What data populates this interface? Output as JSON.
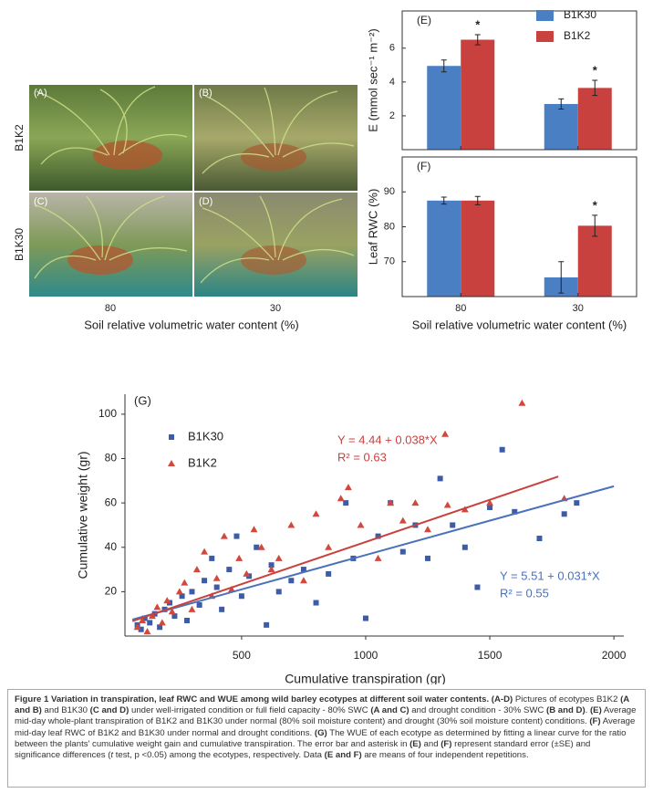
{
  "photos": {
    "panels": [
      {
        "label": "(A)"
      },
      {
        "label": "(B)"
      },
      {
        "label": "(C)"
      },
      {
        "label": "(D)"
      }
    ],
    "row_labels": [
      "B1K2",
      "B1K30"
    ],
    "column_labels": [
      "80",
      "30"
    ],
    "x_label": "Soil relative volumetric water content (%)"
  },
  "chart_data": [
    {
      "type": "bar",
      "panel_label": "(E)",
      "y_label": "E (mmol sec⁻¹ m⁻²)",
      "categories": [
        null,
        null
      ],
      "ylim": [
        0,
        8.2
      ],
      "yticks": [
        2,
        4,
        6
      ],
      "legend": "upper right",
      "series": [
        {
          "name": "B1K30",
          "color": "#4a7fc4",
          "values": [
            4.95,
            2.7
          ],
          "errors": [
            0.35,
            0.3
          ]
        },
        {
          "name": "B1K2",
          "color": "#c9413f",
          "values": [
            6.5,
            3.65
          ],
          "errors": [
            0.3,
            0.45
          ]
        }
      ],
      "annotations": [
        {
          "text": "*",
          "series": 1,
          "index": 0
        },
        {
          "text": "*",
          "series": 1,
          "index": 1
        }
      ]
    },
    {
      "type": "bar",
      "panel_label": "(F)",
      "y_label": "Leaf RWC (%)",
      "x_label": "Soil relative volumetric water content (%)",
      "categories": [
        "80",
        "30"
      ],
      "ylim": [
        60,
        100
      ],
      "yticks": [
        70,
        80,
        90
      ],
      "series": [
        {
          "color": "#4a7fc4",
          "values": [
            87.5,
            65.5
          ],
          "errors": [
            1,
            4.5
          ]
        },
        {
          "color": "#c9413f",
          "values": [
            87.5,
            80.3
          ],
          "errors": [
            1.2,
            3
          ]
        }
      ],
      "annotations": [
        {
          "text": "*",
          "series": 1,
          "index": 1
        }
      ]
    },
    {
      "type": "scatter",
      "panel_label": "(G)",
      "x_label": "Cumulative transpiration (gr)",
      "y_label": "Cumulative weight (gr)",
      "xlim": [
        30,
        2040
      ],
      "ylim": [
        0,
        109
      ],
      "xticks": [
        500,
        1000,
        1500,
        2000
      ],
      "yticks": [
        20,
        40,
        60,
        80,
        100
      ],
      "legend": "upper left",
      "series": [
        {
          "name": "B1K30",
          "color": "#3d5ca8",
          "marker": "square",
          "line_color": "#4a72ba",
          "x": [
            80,
            95,
            110,
            130,
            150,
            170,
            190,
            210,
            230,
            260,
            280,
            300,
            330,
            350,
            380,
            400,
            420,
            450,
            480,
            500,
            530,
            560,
            600,
            620,
            650,
            700,
            750,
            800,
            850,
            920,
            950,
            1000,
            1050,
            1100,
            1150,
            1200,
            1250,
            1300,
            1350,
            1400,
            1450,
            1500,
            1550,
            1600,
            1700,
            1800,
            1850
          ],
          "values": [
            5,
            3,
            8,
            6,
            10,
            4,
            12,
            15,
            9,
            18,
            7,
            20,
            14,
            25,
            35,
            22,
            12,
            30,
            45,
            18,
            27,
            40,
            5,
            32,
            20,
            25,
            30,
            15,
            28,
            60,
            35,
            8,
            45,
            60,
            38,
            50,
            35,
            71,
            50,
            40,
            22,
            58,
            84,
            56,
            44,
            55,
            60
          ],
          "fit": {
            "x": [
              60,
              2000
            ],
            "y": [
              7.4,
              67.5
            ]
          },
          "equation": [
            "Y = 5.51 + 0.031*X",
            "R² = 0.55"
          ]
        },
        {
          "name": "B1K2",
          "color": "#d2483c",
          "marker": "triangle",
          "line_color": "#c9413f",
          "x": [
            80,
            100,
            120,
            140,
            160,
            180,
            200,
            220,
            250,
            270,
            300,
            320,
            350,
            380,
            400,
            430,
            460,
            490,
            520,
            550,
            580,
            620,
            650,
            700,
            750,
            800,
            850,
            900,
            930,
            980,
            1050,
            1100,
            1150,
            1200,
            1250,
            1320,
            1330,
            1400,
            1500,
            1630,
            1800
          ],
          "values": [
            4,
            7,
            2,
            9,
            13,
            6,
            16,
            11,
            20,
            24,
            12,
            30,
            38,
            18,
            26,
            45,
            21,
            35,
            28,
            48,
            40,
            30,
            35,
            50,
            25,
            55,
            40,
            62,
            67,
            50,
            35,
            60,
            52,
            60,
            48,
            91,
            59,
            57,
            60,
            105,
            62
          ],
          "fit": {
            "x": [
              60,
              1776
            ],
            "y": [
              6.7,
              71.9
            ]
          },
          "equation": [
            "Y = 4.44 + 0.038*X",
            "R² = 0.63"
          ]
        }
      ]
    }
  ],
  "caption": [
    {
      "text": "Figure 1 Variation in transpiration, leaf RWC and WUE among wild barley ecotypes at different soil water contents. (A-D)",
      "style": "bold"
    },
    {
      "text": " Pictures of ecotypes B1K2 ",
      "style": "normal"
    },
    {
      "text": "(A and B)",
      "style": "bold"
    },
    {
      "text": " and B1K30 ",
      "style": "normal"
    },
    {
      "text": "(C and D)",
      "style": "bold"
    },
    {
      "text": " under well-irrigated condition or full field capacity - 80% SWC ",
      "style": "normal"
    },
    {
      "text": "(A and C)",
      "style": "bold"
    },
    {
      "text": " and drought condition - 30% SWC ",
      "style": "normal"
    },
    {
      "text": "(B and D)",
      "style": "bold"
    },
    {
      "text": ". ",
      "style": "normal"
    },
    {
      "text": "(E)",
      "style": "bold"
    },
    {
      "text": " Average mid-day whole-plant transpiration of B1K2 and B1K30 under normal (80% soil moisture content) and drought (30% soil moisture content) conditions. ",
      "style": "normal"
    },
    {
      "text": "(F)",
      "style": "bold"
    },
    {
      "text": " Average mid-day leaf RWC of B1K2 and B1K30 under normal and drought conditions. ",
      "style": "normal"
    },
    {
      "text": "(G)",
      "style": "bold"
    },
    {
      "text": " The WUE of each ecotype as determined by fitting a linear curve for the ratio between the plants' cumulative weight gain and cumulative transpiration. The error bar and asterisk in ",
      "style": "normal"
    },
    {
      "text": "(E)",
      "style": "bold"
    },
    {
      "text": " and ",
      "style": "normal"
    },
    {
      "text": "(F)",
      "style": "bold"
    },
    {
      "text": " represent standard error (±SE) and significance differences (",
      "style": "normal"
    },
    {
      "text": "t",
      "style": "italic"
    },
    {
      "text": " test, p <0.05) among the ecotypes, respectively. Data ",
      "style": "normal"
    },
    {
      "text": "(E and F)",
      "style": "bold"
    },
    {
      "text": " are means of four independent repetitions.",
      "style": "normal"
    }
  ]
}
